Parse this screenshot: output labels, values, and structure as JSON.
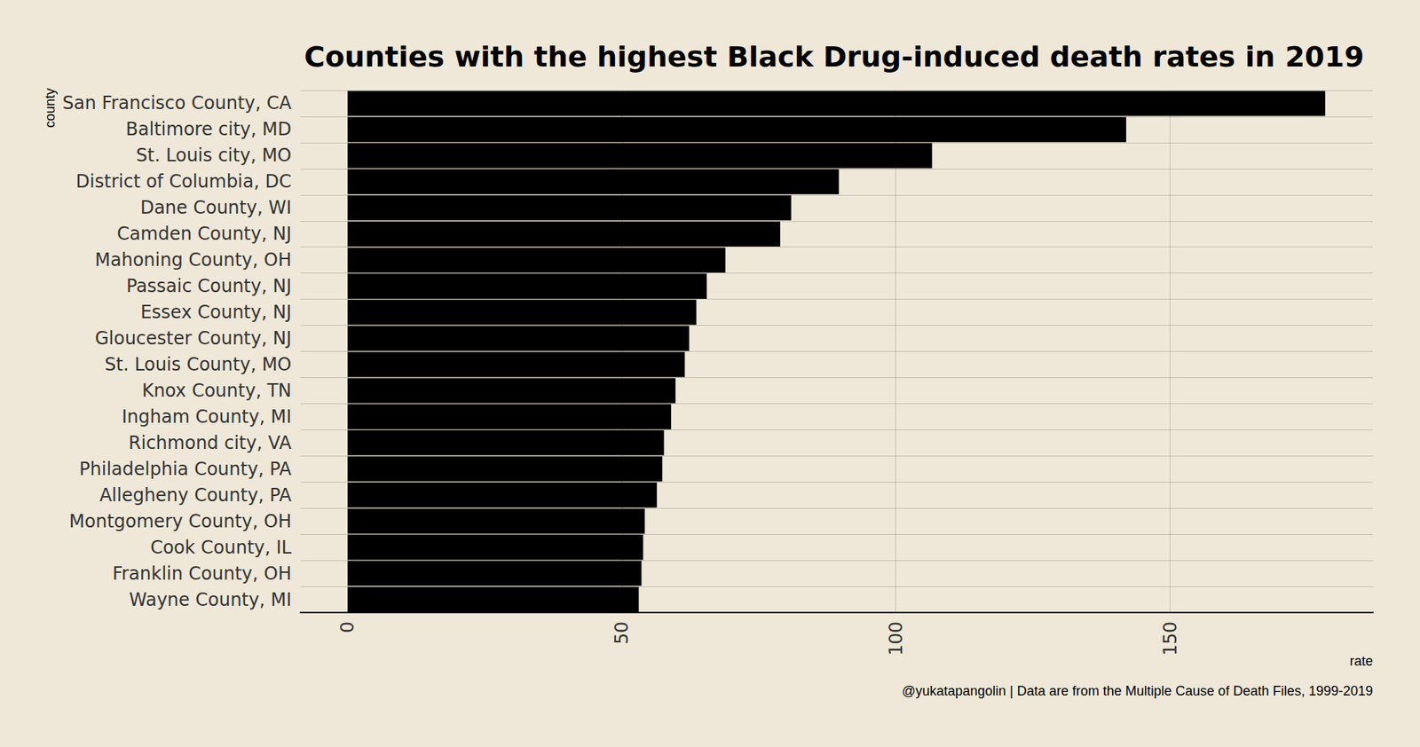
{
  "chart_data": {
    "type": "bar",
    "title": "Counties with the highest Black Drug-induced death rates in 2019",
    "x_label": "rate",
    "y_label": "county",
    "caption": "@yukatapangolin | Data are from the Multiple Cause of Death Files, 1999-2019",
    "orientation": "horizontal",
    "grid": true,
    "color": "#000000",
    "categories": [
      "San Francisco County, CA",
      "Baltimore city, MD",
      "St. Louis city, MO",
      "District of Columbia, DC",
      "Dane County, WI",
      "Camden County, NJ",
      "Mahoning County, OH",
      "Passaic County, NJ",
      "Essex County, NJ",
      "Gloucester County, NJ",
      "St. Louis County, MO",
      "Knox County, TN",
      "Ingham County, MI",
      "Richmond city, VA",
      "Philadelphia County, PA",
      "Allegheny County, PA",
      "Montgomery County, OH",
      "Cook County, IL",
      "Franklin County, OH",
      "Wayne County, MI"
    ],
    "values": [
      178.3,
      142.0,
      106.6,
      89.6,
      80.9,
      78.9,
      68.9,
      65.5,
      63.6,
      62.3,
      61.5,
      59.8,
      59.0,
      57.7,
      57.4,
      56.4,
      54.2,
      53.9,
      53.6,
      53.1
    ],
    "xlim": [
      -8.6,
      187
    ],
    "xticks": [
      0,
      50,
      100,
      150
    ]
  }
}
